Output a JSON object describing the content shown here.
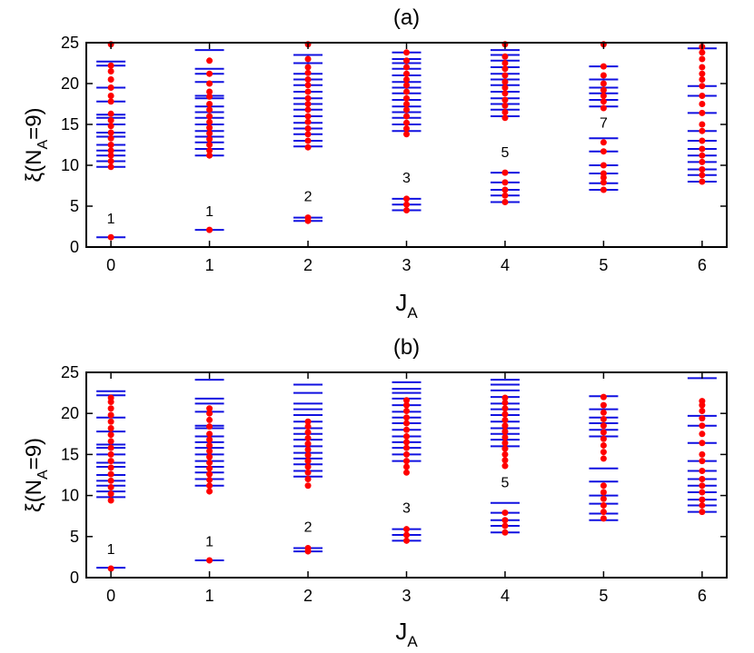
{
  "chart_data": [
    {
      "type": "scatter",
      "title": "(a)",
      "x_label": [
        "J",
        "A"
      ],
      "y_label": [
        "ξ(N",
        "A",
        "=9)"
      ],
      "xlim": [
        -0.25,
        6.25
      ],
      "ylim": [
        0,
        25
      ],
      "xticks": [
        0,
        1,
        2,
        3,
        4,
        5,
        6
      ],
      "yticks": [
        0,
        5,
        10,
        15,
        20,
        25
      ],
      "level_color": "#1010e0",
      "state_color": "#ff0000",
      "columns": [
        {
          "x": 0,
          "levels": [
            1.2,
            9.8,
            10.5,
            11.2,
            11.8,
            12.5,
            13.5,
            14.0,
            15.0,
            15.8,
            16.2,
            17.8,
            19.5,
            22.2,
            22.7
          ],
          "states": [
            1.2,
            9.8,
            10.5,
            11.2,
            11.8,
            12.5,
            13.3,
            14.0,
            14.8,
            15.5,
            16.3,
            17.8,
            18.5,
            19.5,
            20.5,
            21.5,
            22.2,
            24.8
          ]
        },
        {
          "x": 1,
          "levels": [
            2.1,
            11.2,
            12.0,
            12.8,
            13.5,
            14.2,
            15.0,
            15.8,
            16.5,
            17.2,
            18.2,
            18.5,
            20.2,
            21.2,
            21.8,
            24.1
          ],
          "states": [
            2.1,
            11.2,
            11.8,
            12.5,
            13.2,
            13.9,
            14.6,
            15.3,
            16.0,
            16.8,
            17.5,
            18.4,
            19.0,
            20.0,
            21.2,
            22.8
          ]
        },
        {
          "x": 2,
          "levels": [
            3.2,
            3.6,
            12.3,
            13.0,
            13.8,
            14.5,
            15.2,
            16.0,
            16.8,
            17.5,
            18.2,
            19.0,
            19.8,
            20.5,
            21.2,
            22.5,
            23.5
          ],
          "states": [
            3.2,
            3.6,
            12.2,
            13.0,
            13.8,
            14.5,
            15.3,
            16.0,
            16.8,
            17.5,
            18.2,
            19.0,
            19.8,
            20.5,
            21.3,
            22.0,
            23.0,
            24.8
          ]
        },
        {
          "x": 3,
          "levels": [
            4.5,
            5.2,
            5.9,
            14.2,
            15.0,
            15.8,
            16.5,
            17.2,
            18.0,
            18.8,
            19.5,
            20.2,
            21.0,
            21.8,
            22.5,
            23.0,
            23.8
          ],
          "states": [
            4.5,
            5.2,
            5.9,
            13.8,
            14.5,
            15.2,
            16.0,
            16.8,
            17.5,
            18.2,
            19.0,
            19.8,
            20.5,
            21.2,
            22.0,
            22.8,
            23.8
          ]
        },
        {
          "x": 4,
          "levels": [
            5.5,
            6.3,
            7.0,
            7.9,
            9.1,
            16.0,
            16.8,
            17.5,
            18.2,
            19.0,
            19.8,
            20.5,
            21.2,
            22.0,
            22.8,
            23.5,
            24.1
          ],
          "states": [
            5.5,
            6.3,
            7.0,
            7.9,
            9.1,
            15.8,
            16.5,
            17.3,
            18.0,
            18.8,
            19.5,
            20.2,
            21.0,
            21.8,
            22.5,
            23.3,
            24.8
          ]
        },
        {
          "x": 5,
          "levels": [
            7.0,
            7.8,
            9.0,
            10.0,
            11.7,
            13.3,
            17.2,
            18.0,
            18.8,
            19.5,
            20.5,
            22.1
          ],
          "states": [
            7.0,
            7.9,
            8.5,
            9.0,
            10.0,
            11.7,
            12.8,
            17.0,
            17.8,
            18.5,
            19.2,
            20.0,
            21.0,
            22.1,
            24.8
          ]
        },
        {
          "x": 6,
          "levels": [
            8.0,
            8.8,
            9.5,
            10.4,
            11.2,
            12.0,
            13.0,
            14.2,
            16.4,
            18.5,
            19.7,
            24.3
          ],
          "states": [
            8.0,
            8.8,
            9.5,
            10.4,
            11.2,
            12.0,
            13.0,
            14.2,
            15.0,
            16.4,
            17.5,
            18.5,
            19.7,
            20.5,
            21.2,
            22.0,
            23.0,
            23.8,
            24.5
          ]
        }
      ],
      "annotations": [
        {
          "text": "1",
          "x": 0,
          "y": 2.9
        },
        {
          "text": "1",
          "x": 1,
          "y": 3.8
        },
        {
          "text": "2",
          "x": 2,
          "y": 5.6
        },
        {
          "text": "3",
          "x": 3,
          "y": 7.9
        },
        {
          "text": "5",
          "x": 4,
          "y": 11.0
        },
        {
          "text": "7",
          "x": 5,
          "y": 14.6
        }
      ]
    },
    {
      "type": "scatter",
      "title": "(b)",
      "x_label": [
        "J",
        "A"
      ],
      "y_label": [
        "ξ(N",
        "A",
        "=9)"
      ],
      "xlim": [
        -0.25,
        6.25
      ],
      "ylim": [
        0,
        25
      ],
      "xticks": [
        0,
        1,
        2,
        3,
        4,
        5,
        6
      ],
      "yticks": [
        0,
        5,
        10,
        15,
        20,
        25
      ],
      "level_color": "#1010e0",
      "state_color": "#ff0000",
      "columns": [
        {
          "x": 0,
          "levels": [
            1.2,
            9.8,
            10.5,
            11.2,
            11.8,
            12.5,
            13.5,
            14.0,
            15.0,
            15.8,
            16.2,
            17.8,
            19.5,
            22.2,
            22.7
          ],
          "states": [
            1.1,
            9.4,
            10.2,
            11.0,
            11.8,
            12.6,
            13.4,
            14.2,
            15.0,
            15.8,
            16.6,
            17.4,
            18.2,
            19.0,
            19.8,
            20.6,
            21.4,
            21.9
          ]
        },
        {
          "x": 1,
          "levels": [
            2.1,
            11.2,
            12.0,
            12.8,
            13.5,
            14.2,
            15.0,
            15.8,
            16.5,
            17.2,
            18.2,
            18.5,
            20.2,
            21.2,
            21.8,
            24.1
          ],
          "states": [
            2.1,
            10.5,
            11.2,
            11.9,
            12.6,
            13.3,
            14.0,
            14.7,
            15.4,
            16.1,
            16.8,
            17.5,
            18.4,
            19.2,
            20.0,
            20.6
          ]
        },
        {
          "x": 2,
          "levels": [
            3.2,
            3.6,
            12.3,
            13.0,
            13.8,
            14.5,
            15.2,
            16.0,
            16.8,
            17.5,
            18.2,
            19.0,
            19.8,
            20.5,
            21.2,
            22.5,
            23.5
          ],
          "states": [
            3.2,
            3.6,
            11.2,
            12.0,
            12.8,
            13.5,
            14.2,
            14.9,
            15.6,
            16.3,
            17.0,
            17.7,
            18.4,
            19.0
          ]
        },
        {
          "x": 3,
          "levels": [
            4.5,
            5.2,
            5.9,
            14.2,
            15.0,
            15.8,
            16.5,
            17.2,
            18.0,
            18.8,
            19.5,
            20.2,
            21.0,
            21.8,
            22.5,
            23.0,
            23.8
          ],
          "states": [
            4.5,
            5.2,
            5.9,
            12.8,
            13.5,
            14.2,
            15.0,
            15.8,
            16.5,
            17.2,
            18.0,
            18.8,
            19.5,
            20.3,
            21.0,
            21.6
          ]
        },
        {
          "x": 4,
          "levels": [
            5.5,
            6.3,
            7.0,
            7.9,
            9.1,
            16.0,
            16.8,
            17.5,
            18.2,
            19.0,
            19.8,
            20.5,
            21.2,
            22.0,
            22.8,
            23.5,
            24.1
          ],
          "states": [
            5.5,
            6.3,
            7.0,
            7.9,
            13.6,
            14.3,
            15.0,
            15.7,
            16.4,
            17.1,
            17.8,
            18.5,
            19.2,
            19.9,
            20.6,
            21.3,
            21.9
          ]
        },
        {
          "x": 5,
          "levels": [
            7.0,
            7.8,
            9.0,
            10.0,
            11.7,
            13.3,
            17.2,
            18.0,
            18.8,
            19.5,
            20.5,
            22.1
          ],
          "states": [
            7.2,
            8.0,
            8.8,
            9.6,
            10.4,
            11.2,
            14.5,
            15.3,
            16.1,
            16.9,
            17.7,
            18.5,
            19.3,
            20.1,
            21.0,
            22.0
          ]
        },
        {
          "x": 6,
          "levels": [
            8.0,
            8.8,
            9.5,
            10.4,
            11.2,
            12.0,
            13.0,
            14.2,
            16.4,
            18.5,
            19.7,
            24.3
          ],
          "states": [
            8.0,
            8.8,
            9.5,
            10.4,
            11.2,
            12.0,
            13.0,
            14.2,
            15.0,
            16.4,
            17.5,
            18.5,
            19.4,
            20.3,
            21.0,
            21.5
          ]
        }
      ],
      "annotations": [
        {
          "text": "1",
          "x": 0,
          "y": 2.9
        },
        {
          "text": "1",
          "x": 1,
          "y": 3.8
        },
        {
          "text": "2",
          "x": 2,
          "y": 5.6
        },
        {
          "text": "3",
          "x": 3,
          "y": 7.9
        },
        {
          "text": "5",
          "x": 4,
          "y": 11.0
        }
      ]
    }
  ]
}
